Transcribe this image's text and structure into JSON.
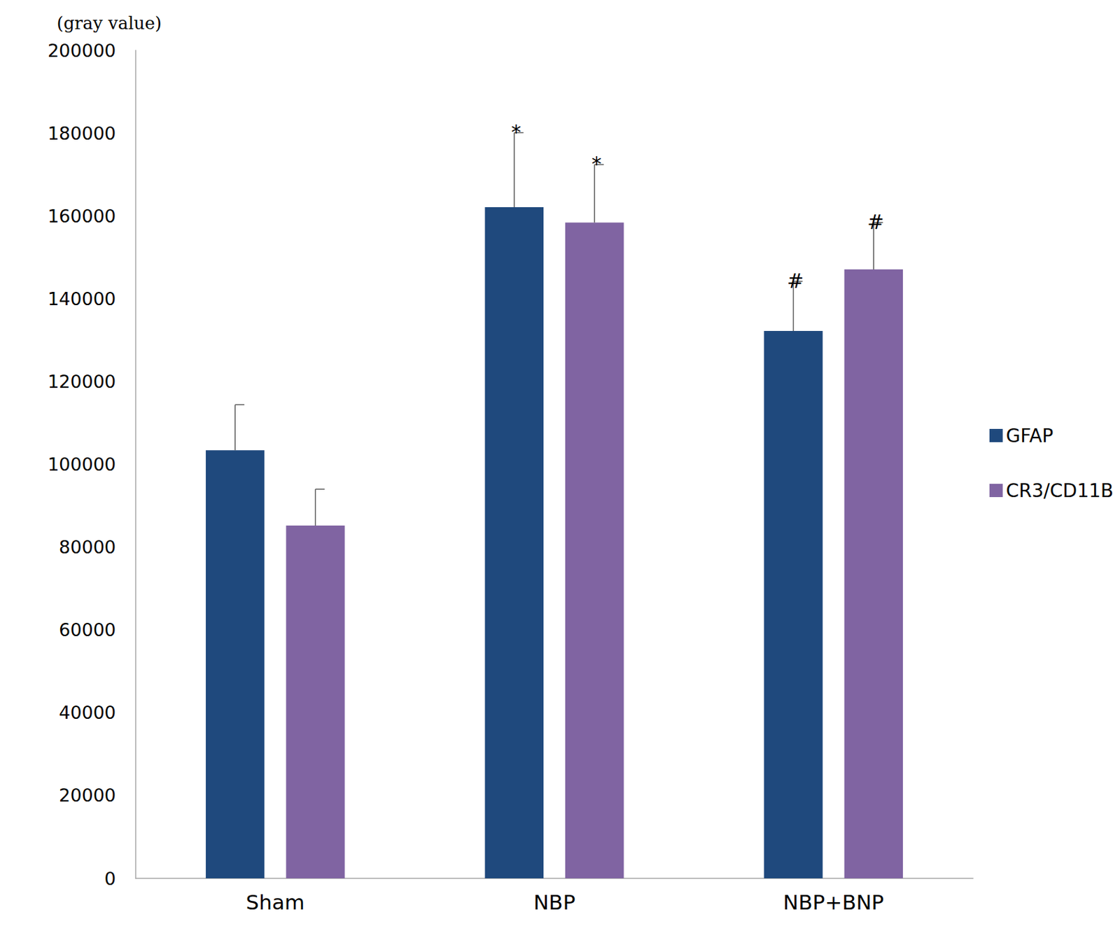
{
  "chart_data": {
    "type": "bar",
    "y_label": "(gray value)",
    "categories": [
      "Sham",
      "NBP",
      "NBP+BNP"
    ],
    "series": [
      {
        "name": "GFAP",
        "color": "#1f497d",
        "values": [
          103400,
          162100,
          132200
        ],
        "errors": [
          11000,
          18000,
          12000
        ],
        "annotations": [
          null,
          "*",
          "#"
        ]
      },
      {
        "name": "CR3/CD11B",
        "color": "#8064a2",
        "values": [
          85200,
          158400,
          147100
        ],
        "errors": [
          8800,
          14000,
          11300
        ],
        "annotations": [
          null,
          "*",
          "#"
        ]
      }
    ],
    "ylim": [
      0,
      200000
    ],
    "yticks": [
      0,
      20000,
      40000,
      60000,
      80000,
      100000,
      120000,
      140000,
      160000,
      180000,
      200000
    ],
    "grid": false,
    "legend": "right"
  }
}
